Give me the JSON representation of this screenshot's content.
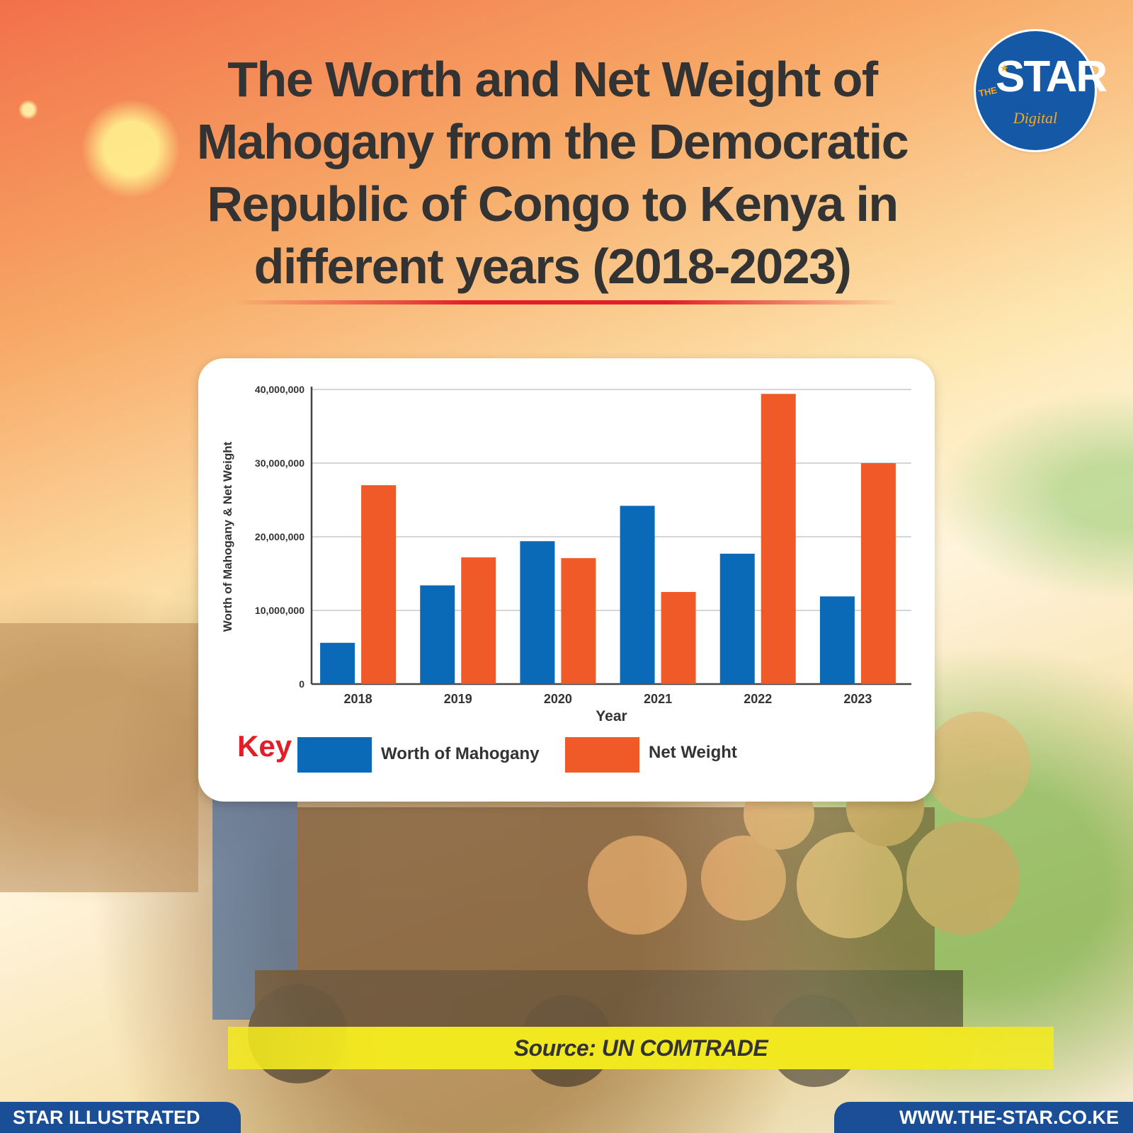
{
  "header": {
    "title": "The Worth and Net Weight of Mahogany from the Democratic Republic of Congo to Kenya in different years (2018-2023)"
  },
  "logo": {
    "the": "THE",
    "star": "STAR",
    "digital": "Digital"
  },
  "legend": {
    "key_label": "Key",
    "items": [
      {
        "label": "Worth of Mahogany",
        "color": "#0b6ab8"
      },
      {
        "label": "Net Weight",
        "color": "#ef5a28"
      }
    ]
  },
  "chart_data": {
    "type": "bar",
    "title": "The Worth and Net Weight of Mahogany from the Democratic Republic of Congo to Kenya in different years (2018-2023)",
    "xlabel": "Year",
    "ylabel": "Worth of Mahogany & Net Weight",
    "categories": [
      "2018",
      "2019",
      "2020",
      "2021",
      "2022",
      "2023"
    ],
    "series": [
      {
        "name": "Worth of Mahogany",
        "color": "#0b6ab8",
        "values": [
          5600000,
          13400000,
          19400000,
          24200000,
          17700000,
          11900000
        ]
      },
      {
        "name": "Net Weight",
        "color": "#ef5a28",
        "values": [
          27000000,
          17200000,
          17100000,
          12500000,
          39400000,
          30000000
        ]
      }
    ],
    "ylim": [
      0,
      40000000
    ],
    "yticks": [
      0,
      10000000,
      20000000,
      30000000,
      40000000
    ],
    "ytick_labels": [
      "0",
      "10,000,000",
      "20,000,000",
      "30,000,000",
      "40,000,000"
    ],
    "grid": true,
    "legend_position": "bottom"
  },
  "source": {
    "text": "Source: UN COMTRADE"
  },
  "footer": {
    "left": "STAR ILLUSTRATED",
    "right": "WWW.THE-STAR.CO.KE"
  }
}
